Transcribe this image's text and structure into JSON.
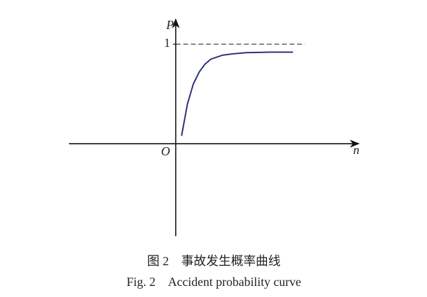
{
  "chart_data": {
    "type": "line",
    "x_label": "n",
    "y_label": "P",
    "origin_label": "O",
    "x": [
      0.5,
      1,
      1.5,
      2,
      2.5,
      3,
      4,
      5,
      6,
      8,
      10
    ],
    "series": [
      {
        "color": "#2b2f7c",
        "values": [
          0.08,
          0.4,
          0.6,
          0.72,
          0.8,
          0.85,
          0.89,
          0.905,
          0.915,
          0.92,
          0.92
        ]
      }
    ],
    "xlim": [
      -9.1,
      15.6
    ],
    "ylim": [
      -0.93,
      1.25
    ],
    "yticks": [
      1
    ],
    "reference_line": 1,
    "caption_cn": "图 2　事故发生概率曲线",
    "caption_en": "Fig. 2　Accident probability curve"
  }
}
